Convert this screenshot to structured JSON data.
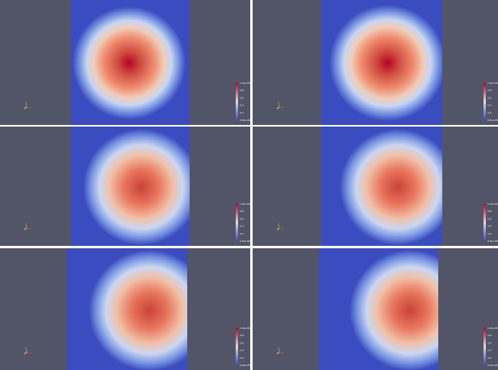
{
  "colorbar_labels": [
    "1.0e+00",
    "0.8",
    "0.6",
    "0.4",
    "0.2",
    "0.0e+00"
  ]
}
